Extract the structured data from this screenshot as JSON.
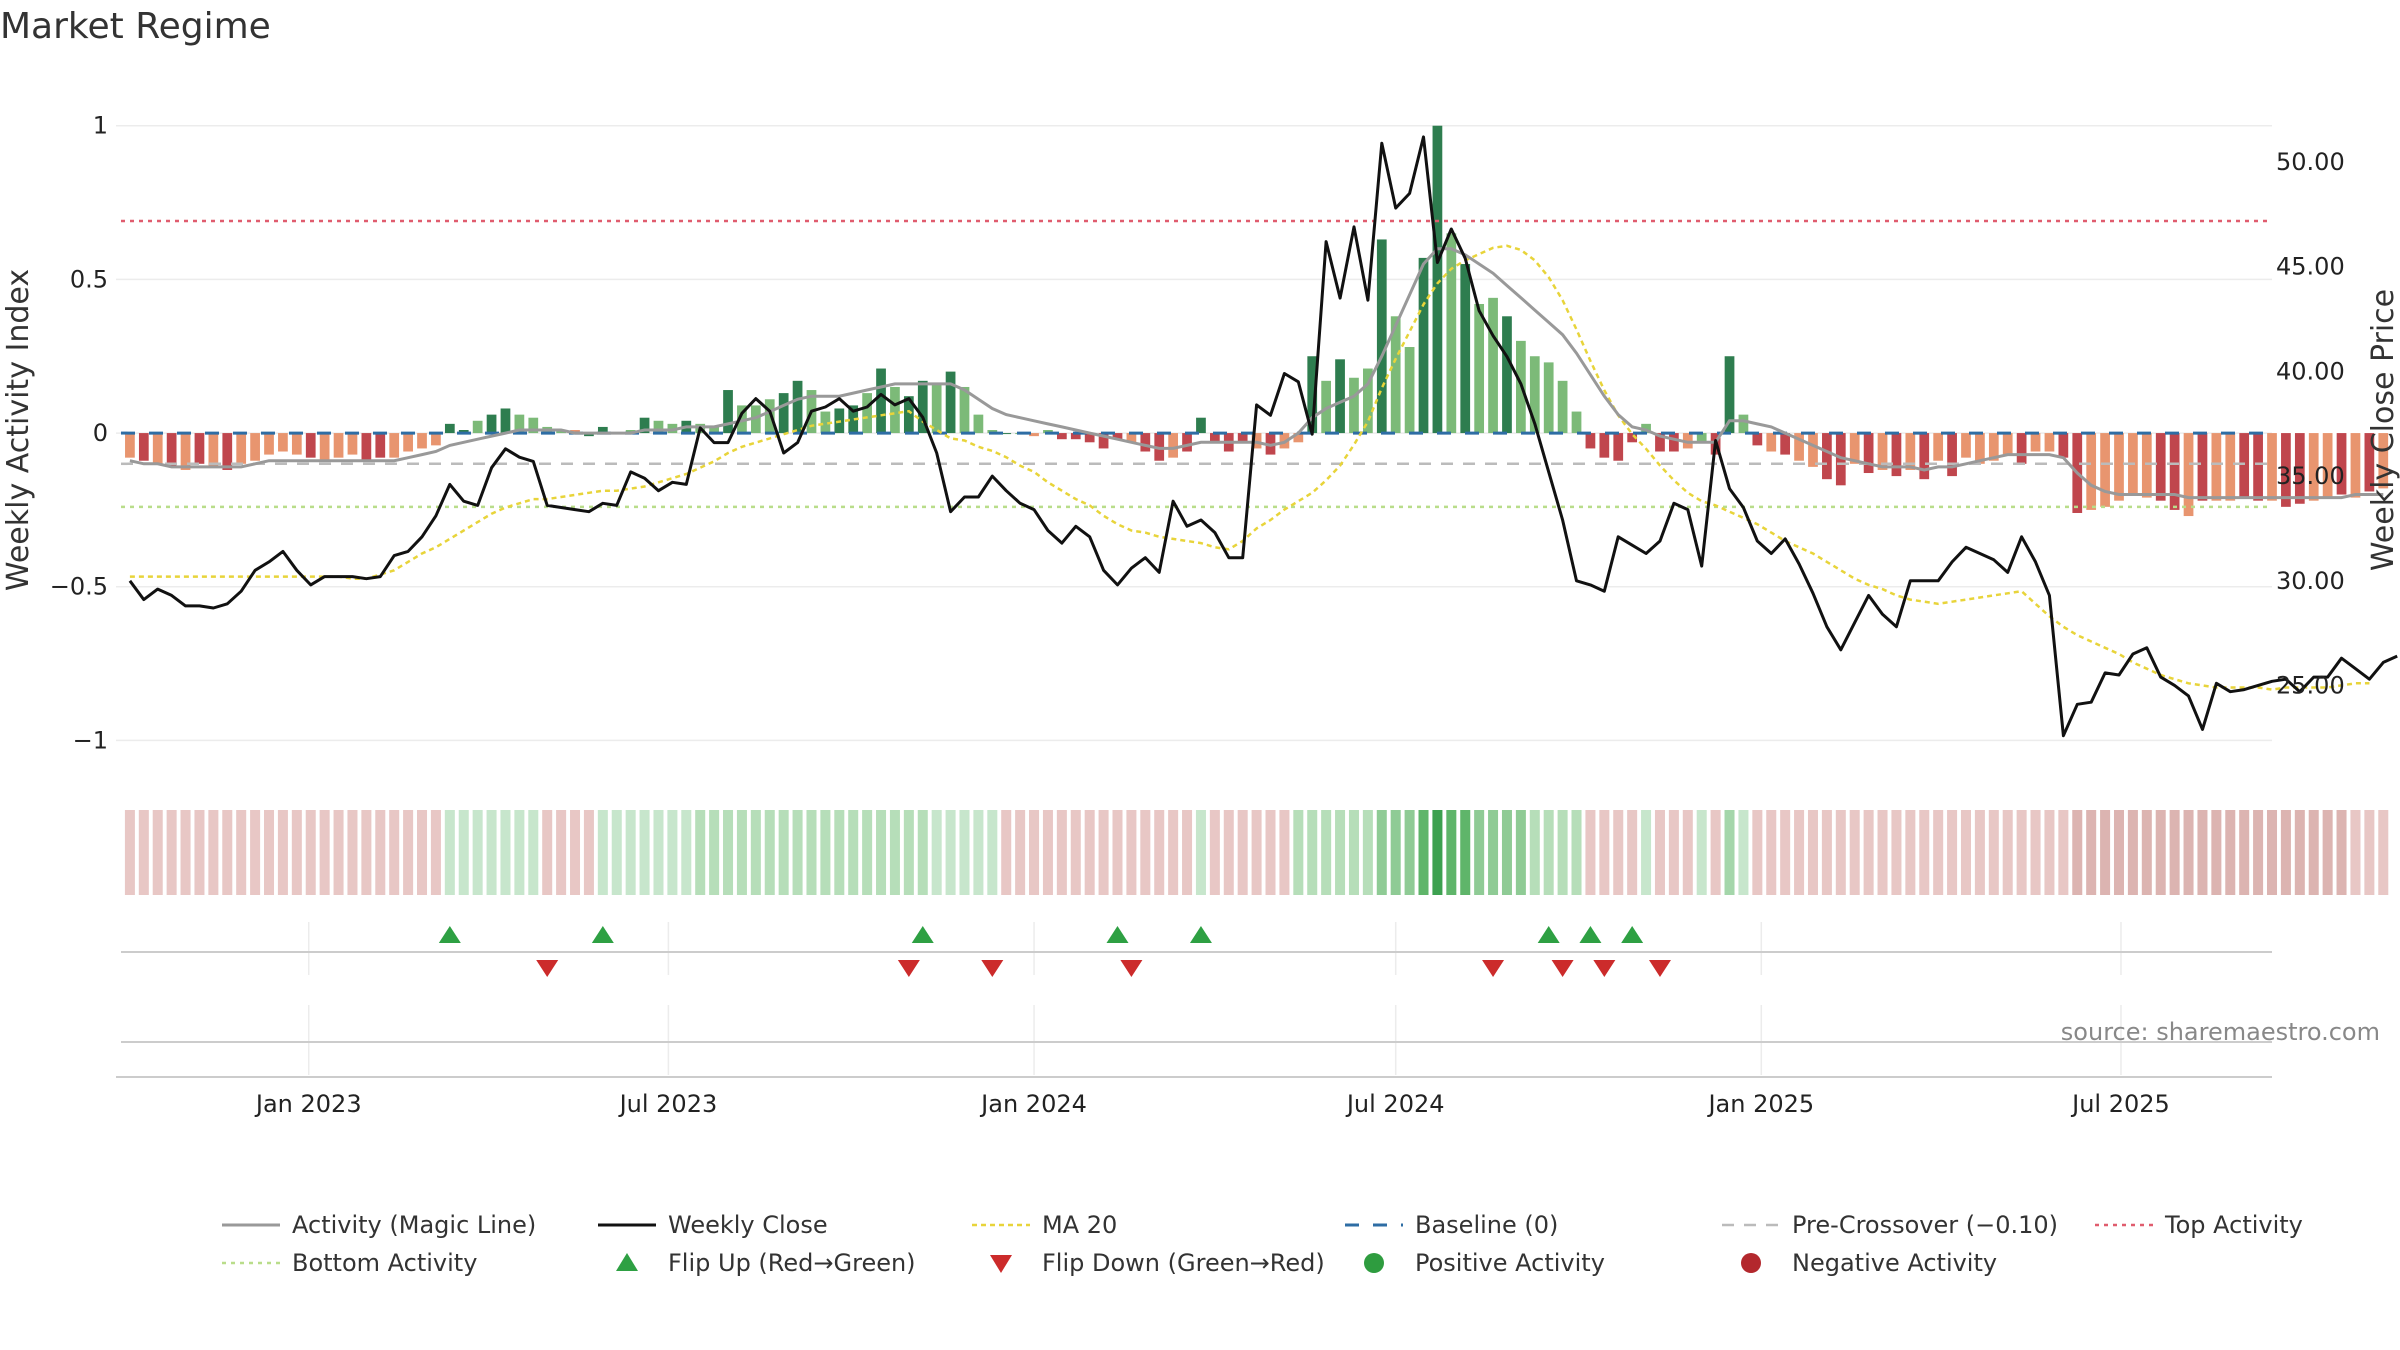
{
  "chart_data": {
    "type": "bar",
    "title": "Market Regime",
    "ylabel": "Weekly Activity Index",
    "y2label": "Weekly Close Price",
    "ylim": [
      -1.08,
      1.1
    ],
    "y2lim": [
      21.2,
      53.2
    ],
    "y_ticks": [
      {
        "v": 1,
        "label": "1"
      },
      {
        "v": 0.5,
        "label": "0.5"
      },
      {
        "v": 0,
        "label": "0"
      },
      {
        "v": -0.5,
        "label": "−0.5"
      },
      {
        "v": -1,
        "label": "−1"
      }
    ],
    "y2_ticks": [
      {
        "v": 50,
        "label": "50.00"
      },
      {
        "v": 45,
        "label": "45.00"
      },
      {
        "v": 40,
        "label": "40.00"
      },
      {
        "v": 35,
        "label": "35.00"
      },
      {
        "v": 30,
        "label": "30.00"
      },
      {
        "v": 25,
        "label": "25.00"
      }
    ],
    "x_range": [
      "2022-09-26",
      "2025-09-15"
    ],
    "x_ticks": [
      {
        "date": "2023-01-01",
        "label": "Jan 2023"
      },
      {
        "date": "2023-07-01",
        "label": "Jul 2023"
      },
      {
        "date": "2024-01-01",
        "label": "Jan 2024"
      },
      {
        "date": "2024-07-01",
        "label": "Jul 2024"
      },
      {
        "date": "2025-01-01",
        "label": "Jan 2025"
      },
      {
        "date": "2025-07-01",
        "label": "Jul 2025"
      }
    ],
    "start_date": "2022-10-03",
    "week_step_days": 7,
    "activity": [
      -0.08,
      -0.09,
      -0.1,
      -0.11,
      -0.12,
      -0.1,
      -0.11,
      -0.12,
      -0.1,
      -0.09,
      -0.07,
      -0.06,
      -0.07,
      -0.08,
      -0.09,
      -0.08,
      -0.07,
      -0.09,
      -0.08,
      -0.08,
      -0.06,
      -0.05,
      -0.04,
      0.03,
      0.01,
      0.04,
      0.06,
      0.08,
      0.06,
      0.05,
      0.02,
      0.01,
      0.01,
      -0.01,
      0.02,
      0.0,
      0.01,
      0.05,
      0.04,
      0.03,
      0.04,
      0.03,
      0.02,
      0.14,
      0.09,
      0.09,
      0.11,
      0.13,
      0.17,
      0.14,
      0.07,
      0.08,
      0.09,
      0.13,
      0.21,
      0.15,
      0.12,
      0.17,
      0.16,
      0.2,
      0.15,
      0.06,
      0.01,
      0.0,
      0.0,
      -0.01,
      0.01,
      -0.02,
      -0.02,
      -0.03,
      -0.05,
      -0.02,
      -0.03,
      -0.06,
      -0.09,
      -0.08,
      -0.06,
      0.05,
      -0.03,
      -0.06,
      -0.03,
      -0.05,
      -0.07,
      -0.05,
      -0.03,
      0.25,
      0.17,
      0.24,
      0.18,
      0.21,
      0.63,
      0.38,
      0.28,
      0.57,
      1.0,
      0.65,
      0.55,
      0.42,
      0.44,
      0.38,
      0.3,
      0.25,
      0.23,
      0.17,
      0.07,
      -0.05,
      -0.08,
      -0.09,
      -0.03,
      0.03,
      -0.06,
      -0.06,
      -0.05,
      -0.03,
      -0.07,
      0.25,
      0.06,
      -0.04,
      -0.06,
      -0.07,
      -0.09,
      -0.11,
      -0.15,
      -0.17,
      -0.1,
      -0.13,
      -0.12,
      -0.14,
      -0.12,
      -0.15,
      -0.09,
      -0.14,
      -0.08,
      -0.1,
      -0.09,
      -0.07,
      -0.1,
      -0.06,
      -0.06,
      -0.08,
      -0.26,
      -0.25,
      -0.24,
      -0.22,
      -0.2,
      -0.21,
      -0.22,
      -0.25,
      -0.27,
      -0.22,
      -0.22,
      -0.22,
      -0.21,
      -0.22,
      -0.22,
      -0.24,
      -0.23,
      -0.22,
      -0.21,
      -0.2,
      -0.21,
      -0.19,
      -0.18
    ],
    "activity_bar_shades": [
      "#e8956f",
      "#c0464d",
      "#e8956f",
      "#c0464d",
      "#e8956f",
      "#c0464d",
      "#e8956f",
      "#c0464d",
      "#e8956f",
      "#e8956f",
      "#e8956f",
      "#e8956f",
      "#e8956f",
      "#c0464d",
      "#e8956f",
      "#e8956f",
      "#e8956f",
      "#c0464d",
      "#c0464d",
      "#e8956f",
      "#e8956f",
      "#e8956f",
      "#e8956f",
      "#2e7d4f",
      "#2e7d4f",
      "#7cba78",
      "#2e7d4f",
      "#2e7d4f",
      "#7cba78",
      "#7cba78",
      "#7cba78",
      "#7cba78",
      "#e8956f",
      "#2e7d4f",
      "#2e7d4f",
      "#7cba78",
      "#7cba78",
      "#2e7d4f",
      "#7cba78",
      "#7cba78",
      "#2e7d4f",
      "#7cba78",
      "#7cba78",
      "#2e7d4f",
      "#7cba78",
      "#7cba78",
      "#7cba78",
      "#2e7d4f",
      "#2e7d4f",
      "#7cba78",
      "#7cba78",
      "#2e7d4f",
      "#2e7d4f",
      "#7cba78",
      "#2e7d4f",
      "#7cba78",
      "#2e7d4f",
      "#2e7d4f",
      "#7cba78",
      "#2e7d4f",
      "#7cba78",
      "#7cba78",
      "#7cba78",
      "#2e7d4f",
      "#7cba78",
      "#e8956f",
      "#7cba78",
      "#c0464d",
      "#c0464d",
      "#c0464d",
      "#c0464d",
      "#c0464d",
      "#e8956f",
      "#c0464d",
      "#c0464d",
      "#e8956f",
      "#c0464d",
      "#2e7d4f",
      "#c0464d",
      "#c0464d",
      "#c0464d",
      "#e8956f",
      "#c0464d",
      "#e8956f",
      "#e8956f",
      "#2e7d4f",
      "#7cba78",
      "#2e7d4f",
      "#7cba78",
      "#7cba78",
      "#2e7d4f",
      "#7cba78",
      "#7cba78",
      "#2e7d4f",
      "#2e7d4f",
      "#7cba78",
      "#2e7d4f",
      "#7cba78",
      "#7cba78",
      "#2e7d4f",
      "#7cba78",
      "#7cba78",
      "#7cba78",
      "#7cba78",
      "#7cba78",
      "#c0464d",
      "#c0464d",
      "#c0464d",
      "#c0464d",
      "#7cba78",
      "#c0464d",
      "#c0464d",
      "#e8956f",
      "#7cba78",
      "#c0464d",
      "#2e7d4f",
      "#7cba78",
      "#c0464d",
      "#e8956f",
      "#c0464d",
      "#e8956f",
      "#e8956f",
      "#c0464d",
      "#c0464d",
      "#e8956f",
      "#c0464d",
      "#e8956f",
      "#c0464d",
      "#e8956f",
      "#c0464d",
      "#e8956f",
      "#c0464d",
      "#e8956f",
      "#e8956f",
      "#e8956f",
      "#e8956f",
      "#c0464d",
      "#e8956f",
      "#e8956f",
      "#c0464d",
      "#c0464d",
      "#e8956f",
      "#e8956f",
      "#e8956f",
      "#e8956f",
      "#e8956f",
      "#c0464d",
      "#c0464d",
      "#e8956f",
      "#c0464d",
      "#e8956f",
      "#e8956f",
      "#c0464d",
      "#c0464d",
      "#e8956f",
      "#c0464d",
      "#c0464d",
      "#e8956f",
      "#e8956f",
      "#c0464d",
      "#e8956f",
      "#c0464d",
      "#e8956f",
      "#e8956f",
      "#e8956f"
    ],
    "magic_line": [
      -0.09,
      -0.1,
      -0.1,
      -0.11,
      -0.11,
      -0.11,
      -0.11,
      -0.11,
      -0.11,
      -0.1,
      -0.09,
      -0.09,
      -0.09,
      -0.09,
      -0.09,
      -0.09,
      -0.09,
      -0.09,
      -0.09,
      -0.09,
      -0.08,
      -0.07,
      -0.06,
      -0.04,
      -0.03,
      -0.02,
      -0.01,
      0.0,
      0.01,
      0.01,
      0.01,
      0.01,
      0.0,
      0.0,
      0.0,
      0.0,
      0.0,
      0.01,
      0.01,
      0.01,
      0.02,
      0.02,
      0.02,
      0.03,
      0.04,
      0.05,
      0.07,
      0.09,
      0.11,
      0.12,
      0.12,
      0.12,
      0.13,
      0.14,
      0.15,
      0.16,
      0.16,
      0.16,
      0.16,
      0.16,
      0.14,
      0.11,
      0.08,
      0.06,
      0.05,
      0.04,
      0.03,
      0.02,
      0.01,
      0.0,
      -0.01,
      -0.02,
      -0.03,
      -0.04,
      -0.05,
      -0.05,
      -0.04,
      -0.03,
      -0.03,
      -0.03,
      -0.03,
      -0.03,
      -0.04,
      -0.03,
      0.0,
      0.05,
      0.08,
      0.1,
      0.12,
      0.16,
      0.25,
      0.35,
      0.45,
      0.55,
      0.6,
      0.6,
      0.58,
      0.55,
      0.52,
      0.48,
      0.44,
      0.4,
      0.36,
      0.32,
      0.26,
      0.19,
      0.12,
      0.06,
      0.02,
      0.01,
      -0.01,
      -0.02,
      -0.03,
      -0.03,
      -0.03,
      0.04,
      0.04,
      0.03,
      0.02,
      0.0,
      -0.02,
      -0.04,
      -0.06,
      -0.08,
      -0.09,
      -0.1,
      -0.11,
      -0.11,
      -0.11,
      -0.12,
      -0.11,
      -0.11,
      -0.1,
      -0.09,
      -0.08,
      -0.07,
      -0.07,
      -0.07,
      -0.07,
      -0.08,
      -0.13,
      -0.17,
      -0.19,
      -0.2,
      -0.2,
      -0.2,
      -0.2,
      -0.2,
      -0.21,
      -0.21,
      -0.21,
      -0.21,
      -0.21,
      -0.21,
      -0.21,
      -0.21,
      -0.21,
      -0.21,
      -0.21,
      -0.21,
      -0.2,
      -0.2,
      -0.2
    ],
    "weekly_close": [
      30.0,
      29.1,
      29.6,
      29.3,
      28.8,
      28.8,
      28.7,
      28.9,
      29.5,
      30.5,
      30.9,
      31.4,
      30.5,
      29.8,
      30.2,
      30.2,
      30.2,
      30.1,
      30.2,
      31.2,
      31.4,
      32.1,
      33.1,
      34.6,
      33.8,
      33.6,
      35.4,
      36.3,
      35.9,
      35.7,
      33.6,
      33.5,
      33.4,
      33.3,
      33.7,
      33.6,
      35.2,
      34.9,
      34.3,
      34.7,
      34.6,
      37.3,
      36.6,
      36.6,
      38.0,
      38.7,
      38.1,
      36.1,
      36.6,
      38.1,
      38.3,
      38.7,
      38.1,
      38.3,
      38.9,
      38.4,
      38.7,
      37.8,
      36.1,
      33.3,
      34.0,
      34.0,
      35.0,
      34.3,
      33.7,
      33.4,
      32.4,
      31.8,
      32.6,
      32.1,
      30.5,
      29.8,
      30.6,
      31.1,
      30.4,
      33.8,
      32.6,
      32.9,
      32.3,
      31.1,
      31.1,
      38.4,
      37.9,
      39.9,
      39.5,
      37.0,
      46.2,
      43.5,
      46.9,
      43.4,
      50.9,
      47.8,
      48.5,
      51.2,
      45.2,
      46.8,
      45.4,
      42.9,
      41.7,
      40.7,
      39.4,
      37.5,
      35.2,
      32.9,
      30.0,
      29.8,
      29.5,
      32.1,
      31.7,
      31.3,
      31.9,
      33.7,
      33.4,
      30.7,
      36.7,
      34.4,
      33.5,
      31.9,
      31.3,
      32.0,
      30.8,
      29.4,
      27.8,
      26.7,
      28.0,
      29.3,
      28.4,
      27.8,
      30.0,
      30.0,
      30.0,
      30.9,
      31.6,
      31.3,
      31.0,
      30.4,
      32.1,
      30.9,
      29.3,
      22.6,
      24.1,
      24.2,
      25.6,
      25.5,
      26.5,
      26.8,
      25.4,
      25.0,
      24.5,
      22.9,
      25.1,
      24.7,
      24.8,
      25.0,
      25.2,
      25.3,
      24.7,
      25.4,
      25.4,
      26.3,
      25.8,
      25.3,
      26.1,
      26.4
    ],
    "ma20": [
      30.2,
      30.2,
      30.2,
      30.2,
      30.2,
      30.2,
      30.2,
      30.2,
      30.2,
      30.2,
      30.2,
      30.2,
      30.2,
      30.2,
      30.2,
      30.2,
      30.1,
      30.1,
      30.3,
      30.5,
      30.9,
      31.3,
      31.6,
      32.0,
      32.4,
      32.8,
      33.2,
      33.5,
      33.7,
      33.9,
      33.9,
      34.0,
      34.1,
      34.2,
      34.3,
      34.3,
      34.4,
      34.5,
      34.7,
      34.9,
      35.1,
      35.4,
      35.7,
      36.1,
      36.4,
      36.6,
      36.8,
      37.0,
      37.2,
      37.4,
      37.5,
      37.6,
      37.7,
      37.8,
      37.9,
      38.0,
      38.1,
      37.6,
      37.2,
      36.8,
      36.7,
      36.4,
      36.2,
      35.9,
      35.5,
      35.2,
      34.7,
      34.3,
      33.9,
      33.6,
      33.1,
      32.7,
      32.4,
      32.3,
      32.1,
      32.0,
      31.9,
      31.8,
      31.6,
      31.5,
      31.9,
      32.5,
      32.9,
      33.4,
      33.8,
      34.2,
      34.8,
      35.5,
      36.5,
      37.6,
      39.2,
      40.6,
      41.9,
      43.2,
      44.2,
      44.9,
      45.3,
      45.6,
      45.9,
      46.0,
      45.8,
      45.3,
      44.5,
      43.4,
      42.0,
      40.5,
      39.1,
      37.9,
      37.0,
      36.3,
      35.5,
      34.8,
      34.2,
      33.8,
      33.6,
      33.3,
      33.0,
      32.7,
      32.3,
      31.9,
      31.6,
      31.3,
      30.9,
      30.5,
      30.1,
      29.8,
      29.6,
      29.3,
      29.1,
      29.0,
      28.9,
      29.0,
      29.1,
      29.2,
      29.3,
      29.4,
      29.5,
      28.9,
      28.3,
      27.8,
      27.4,
      27.1,
      26.8,
      26.5,
      26.1,
      25.8,
      25.5,
      25.3,
      25.1,
      25.0,
      24.9,
      24.9,
      24.9,
      24.9,
      24.8,
      24.9,
      24.9,
      24.9,
      24.9,
      25.0,
      25.1,
      25.1
    ],
    "reference_lines": {
      "baseline": 0,
      "pre_crossover": -0.1,
      "top_activity": 0.69,
      "bottom_activity": -0.24
    },
    "regime_strip_colors": [
      "#e8c7c5",
      "#e8c7c5",
      "#e8c7c5",
      "#e8c7c5",
      "#e8c7c5",
      "#e8c7c5",
      "#e8c7c5",
      "#e8c7c5",
      "#e8c7c5",
      "#e8c7c5",
      "#e8c7c5",
      "#e8c7c5",
      "#e8c7c5",
      "#e8c7c5",
      "#e8c7c5",
      "#e8c7c5",
      "#e8c7c5",
      "#e8c7c5",
      "#e8c7c5",
      "#e8c7c5",
      "#e8c7c5",
      "#e8c7c5",
      "#e8c7c5",
      "#c7e6cc",
      "#c7e6cc",
      "#c7e6cc",
      "#c7e6cc",
      "#c7e6cc",
      "#c7e6cc",
      "#c7e6cc",
      "#e8c7c5",
      "#e8c7c5",
      "#e8c7c5",
      "#e8c7c5",
      "#c7e6cc",
      "#c7e6cc",
      "#c7e6cc",
      "#c7e6cc",
      "#c7e6cc",
      "#c7e6cc",
      "#c7e6cc",
      "#b6deb9",
      "#b6deb9",
      "#b6deb9",
      "#b6deb9",
      "#b6deb9",
      "#b6deb9",
      "#b6deb9",
      "#b6deb9",
      "#b6deb9",
      "#b6deb9",
      "#b6deb9",
      "#b6deb9",
      "#b6deb9",
      "#b6deb9",
      "#b6deb9",
      "#b6deb9",
      "#b6deb9",
      "#c7e6cc",
      "#c7e6cc",
      "#c7e6cc",
      "#c7e6cc",
      "#c7e6cc",
      "#e8c7c5",
      "#e8c7c5",
      "#e8c7c5",
      "#e8c7c5",
      "#e8c7c5",
      "#e8c7c5",
      "#e8c7c5",
      "#e8c7c5",
      "#e8c7c5",
      "#e8c7c5",
      "#e8c7c5",
      "#e8c7c5",
      "#e8c7c5",
      "#e8c7c5",
      "#c7e6cc",
      "#e8c7c5",
      "#e8c7c5",
      "#e8c7c5",
      "#e8c7c5",
      "#e8c7c5",
      "#e8c7c5",
      "#b6deb9",
      "#b6deb9",
      "#b6deb9",
      "#b6deb9",
      "#b6deb9",
      "#b6deb9",
      "#8fcb95",
      "#8fcb95",
      "#8fcb95",
      "#5fb56a",
      "#3da150",
      "#5fb56a",
      "#5fb56a",
      "#8fcb95",
      "#8fcb95",
      "#8fcb95",
      "#8fcb95",
      "#b6deb9",
      "#b6deb9",
      "#b6deb9",
      "#b6deb9",
      "#e8c7c5",
      "#e8c7c5",
      "#e8c7c5",
      "#e8c7c5",
      "#c7e6cc",
      "#e8c7c5",
      "#e8c7c5",
      "#e8c7c5",
      "#c7e6cc",
      "#e8c7c5",
      "#a4d6aa",
      "#c7e6cc",
      "#e8c7c5",
      "#e8c7c5",
      "#e8c7c5",
      "#e8c7c5",
      "#e8c7c5",
      "#e8c7c5",
      "#e8c7c5",
      "#e8c7c5",
      "#e8c7c5",
      "#e8c7c5",
      "#e8c7c5",
      "#e8c7c5",
      "#e8c7c5",
      "#e8c7c5",
      "#e8c7c5",
      "#e8c7c5",
      "#e8c7c5",
      "#e8c7c5",
      "#e8c7c5",
      "#e8c7c5",
      "#e8c7c5",
      "#e8c7c5",
      "#e8c7c5",
      "#dcb4b1",
      "#dcb4b1",
      "#dcb4b1",
      "#dcb4b1",
      "#dcb4b1",
      "#dcb4b1",
      "#dcb4b1",
      "#dcb4b1",
      "#dcb4b1",
      "#dcb4b1",
      "#dcb4b1",
      "#dcb4b1",
      "#dcb4b1",
      "#dcb4b1",
      "#dcb4b1",
      "#dcb4b1",
      "#dcb4b1",
      "#dcb4b1",
      "#dcb4b1",
      "#dcb4b1",
      "#e8c7c5",
      "#e8c7c5",
      "#e8c7c5"
    ],
    "flip_up_weeks": [
      23,
      34,
      57,
      71,
      77,
      102,
      105,
      108
    ],
    "flip_down_weeks": [
      30,
      56,
      62,
      72,
      98,
      103,
      106,
      110
    ],
    "colors": {
      "magic_line": "#999999",
      "weekly_close": "#111111",
      "ma20": "#e8d43a",
      "baseline": "#2e6da4",
      "pre_crossover": "#bbbbbb",
      "top_activity": "#e05c6e",
      "bottom_activity": "#b9dd8a",
      "flip_up": "#2ea043",
      "flip_down": "#cc2b2b",
      "positive": "#2e9c3f",
      "negative": "#b3282d"
    },
    "legend": [
      {
        "label": "Activity (Magic Line)",
        "style": "line-gray"
      },
      {
        "label": "Weekly Close",
        "style": "line-black"
      },
      {
        "label": "MA 20",
        "style": "dotted-yellow"
      },
      {
        "label": "Baseline (0)",
        "style": "dashed-blue"
      },
      {
        "label": "Pre-Crossover (−0.10)",
        "style": "dashed-gray"
      },
      {
        "label": "Top Activity",
        "style": "dotted-red"
      },
      {
        "label": "Bottom Activity",
        "style": "dotted-green"
      },
      {
        "label": "Flip Up (Red→Green)",
        "style": "triangle-up"
      },
      {
        "label": "Flip Down (Green→Red)",
        "style": "triangle-down"
      },
      {
        "label": "Positive Activity",
        "style": "dot-green"
      },
      {
        "label": "Negative Activity",
        "style": "dot-red"
      }
    ],
    "legend_placement": "bottom",
    "source": "source: sharemaestro.com",
    "grid": true
  }
}
